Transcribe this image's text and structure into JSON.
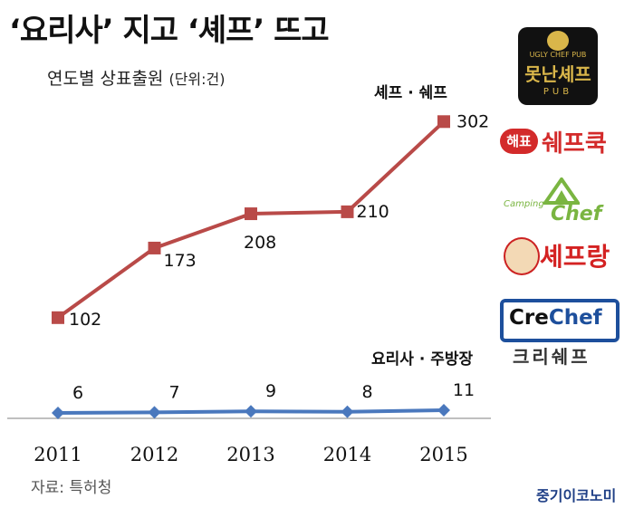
{
  "headline": "‘요리사’ 지고 ‘셰프’ 뜨고",
  "subtitle": "연도별 상표출원",
  "unit_note": "(단위:건)",
  "source": "자료: 특허청",
  "publisher": "중기이코노미",
  "logos": {
    "ugly_chef_top": "UGLY CHEF PUB",
    "ugly_chef_name": "못난셰프",
    "ugly_chef_pub": "PUB",
    "haepyo_badge": "해표",
    "haepyo_text": "쉐프쿡",
    "camping_small": "Camping",
    "camping_big": "Chef",
    "chefrang": "셰프랑",
    "crechef_cre": "Cre",
    "crechef_chef": "Chef",
    "crechef_korean": "크리쉐프"
  },
  "colors": {
    "chef_series": "#b94a48",
    "cook_series": "#4a78bd",
    "axis": "#aaaaaa",
    "publisher": "#1f3f86"
  },
  "chart_data": {
    "type": "line",
    "categories": [
      "2011",
      "2012",
      "2013",
      "2014",
      "2015"
    ],
    "series": [
      {
        "name": "셰프 · 쉐프",
        "values": [
          102,
          173,
          208,
          210,
          302
        ],
        "marker": "square",
        "color": "#b94a48"
      },
      {
        "name": "요리사 · 주방장",
        "values": [
          6,
          7,
          9,
          8,
          11
        ],
        "marker": "diamond",
        "color": "#4a78bd"
      }
    ],
    "ylim": [
      0,
      302
    ],
    "grid": false
  }
}
